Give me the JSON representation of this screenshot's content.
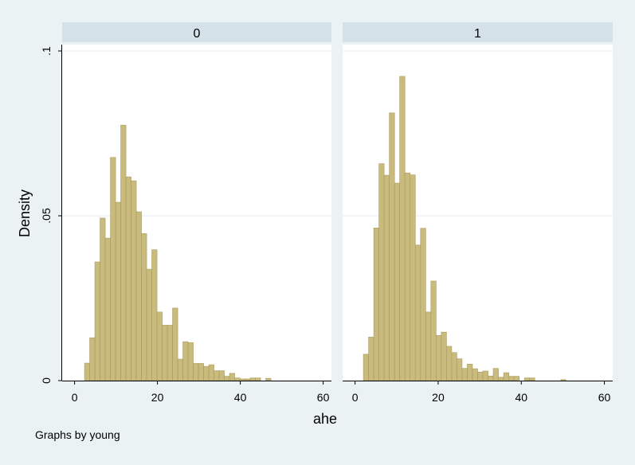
{
  "chart_data": {
    "type": "bar",
    "xlabel": "ahe",
    "ylabel": "Density",
    "xlim": [
      -3,
      62
    ],
    "ylim": [
      0,
      0.1
    ],
    "xticks": [
      {
        "value": 0,
        "label": "0"
      },
      {
        "value": 20,
        "label": "20"
      },
      {
        "value": 40,
        "label": "40"
      },
      {
        "value": 60,
        "label": "60"
      }
    ],
    "yticks": [
      {
        "value": 0,
        "label": "0"
      },
      {
        "value": 0.05,
        "label": ".05"
      },
      {
        "value": 0.1,
        "label": ".1"
      }
    ],
    "grid": true,
    "bar_color": "#c8bb7d",
    "bar_edge_color": "#a89a5c",
    "panel_header_color": "#d5e1e9",
    "background_color": "#eaf2f3",
    "panels": [
      {
        "label": "0",
        "bars": [
          {
            "x": 2.4,
            "w": 1.25,
            "d": 0.0053
          },
          {
            "x": 3.65,
            "w": 1.25,
            "d": 0.013
          },
          {
            "x": 4.9,
            "w": 1.25,
            "d": 0.036
          },
          {
            "x": 6.15,
            "w": 1.25,
            "d": 0.0493
          },
          {
            "x": 7.4,
            "w": 1.25,
            "d": 0.0432
          },
          {
            "x": 8.65,
            "w": 1.25,
            "d": 0.0677
          },
          {
            "x": 9.9,
            "w": 1.25,
            "d": 0.0541
          },
          {
            "x": 11.15,
            "w": 1.25,
            "d": 0.0775
          },
          {
            "x": 12.4,
            "w": 1.25,
            "d": 0.0618
          },
          {
            "x": 13.65,
            "w": 1.25,
            "d": 0.0606
          },
          {
            "x": 14.9,
            "w": 1.25,
            "d": 0.0512
          },
          {
            "x": 16.15,
            "w": 1.25,
            "d": 0.0446
          },
          {
            "x": 17.4,
            "w": 1.25,
            "d": 0.0338
          },
          {
            "x": 18.65,
            "w": 1.25,
            "d": 0.0397
          },
          {
            "x": 19.9,
            "w": 1.25,
            "d": 0.0208
          },
          {
            "x": 21.15,
            "w": 1.25,
            "d": 0.0168
          },
          {
            "x": 22.4,
            "w": 1.25,
            "d": 0.0168
          },
          {
            "x": 23.65,
            "w": 1.25,
            "d": 0.022
          },
          {
            "x": 24.9,
            "w": 1.25,
            "d": 0.0065
          },
          {
            "x": 26.15,
            "w": 1.25,
            "d": 0.0118
          },
          {
            "x": 27.4,
            "w": 1.25,
            "d": 0.0115
          },
          {
            "x": 28.65,
            "w": 1.25,
            "d": 0.0052
          },
          {
            "x": 29.9,
            "w": 1.25,
            "d": 0.0052
          },
          {
            "x": 31.15,
            "w": 1.25,
            "d": 0.0043
          },
          {
            "x": 32.4,
            "w": 1.25,
            "d": 0.0048
          },
          {
            "x": 33.65,
            "w": 1.25,
            "d": 0.003
          },
          {
            "x": 34.9,
            "w": 1.25,
            "d": 0.003
          },
          {
            "x": 36.15,
            "w": 1.25,
            "d": 0.0013
          },
          {
            "x": 37.4,
            "w": 1.25,
            "d": 0.0022
          },
          {
            "x": 38.65,
            "w": 1.25,
            "d": 0.0008
          },
          {
            "x": 39.9,
            "w": 1.25,
            "d": 0.0005
          },
          {
            "x": 41.15,
            "w": 1.25,
            "d": 0.0005
          },
          {
            "x": 42.4,
            "w": 1.25,
            "d": 0.0008
          },
          {
            "x": 43.65,
            "w": 1.25,
            "d": 0.0008
          },
          {
            "x": 46.15,
            "w": 1.25,
            "d": 0.0007
          }
        ]
      },
      {
        "label": "1",
        "bars": [
          {
            "x": 2.0,
            "w": 1.25,
            "d": 0.008
          },
          {
            "x": 3.25,
            "w": 1.25,
            "d": 0.0132
          },
          {
            "x": 4.5,
            "w": 1.25,
            "d": 0.0463
          },
          {
            "x": 5.75,
            "w": 1.25,
            "d": 0.0658
          },
          {
            "x": 7.0,
            "w": 1.25,
            "d": 0.0623
          },
          {
            "x": 8.25,
            "w": 1.25,
            "d": 0.0812
          },
          {
            "x": 9.5,
            "w": 1.25,
            "d": 0.0599
          },
          {
            "x": 10.75,
            "w": 1.25,
            "d": 0.0923
          },
          {
            "x": 12.0,
            "w": 1.25,
            "d": 0.063
          },
          {
            "x": 13.25,
            "w": 1.25,
            "d": 0.0624
          },
          {
            "x": 14.5,
            "w": 1.25,
            "d": 0.0411
          },
          {
            "x": 15.75,
            "w": 1.25,
            "d": 0.0462
          },
          {
            "x": 17.0,
            "w": 1.25,
            "d": 0.0208
          },
          {
            "x": 18.25,
            "w": 1.25,
            "d": 0.0302
          },
          {
            "x": 19.5,
            "w": 1.25,
            "d": 0.0137
          },
          {
            "x": 20.75,
            "w": 1.25,
            "d": 0.0147
          },
          {
            "x": 22.0,
            "w": 1.25,
            "d": 0.0104
          },
          {
            "x": 23.25,
            "w": 1.25,
            "d": 0.0085
          },
          {
            "x": 24.5,
            "w": 1.25,
            "d": 0.0066
          },
          {
            "x": 25.75,
            "w": 1.25,
            "d": 0.0037
          },
          {
            "x": 27.0,
            "w": 1.25,
            "d": 0.005
          },
          {
            "x": 28.25,
            "w": 1.25,
            "d": 0.0036
          },
          {
            "x": 29.5,
            "w": 1.25,
            "d": 0.0026
          },
          {
            "x": 30.75,
            "w": 1.25,
            "d": 0.0029
          },
          {
            "x": 32.0,
            "w": 1.25,
            "d": 0.0014
          },
          {
            "x": 33.25,
            "w": 1.25,
            "d": 0.0037
          },
          {
            "x": 34.5,
            "w": 1.25,
            "d": 0.001
          },
          {
            "x": 35.75,
            "w": 1.25,
            "d": 0.0024
          },
          {
            "x": 37.0,
            "w": 1.25,
            "d": 0.0013
          },
          {
            "x": 38.25,
            "w": 1.25,
            "d": 0.0013
          },
          {
            "x": 40.75,
            "w": 1.25,
            "d": 0.0008
          },
          {
            "x": 42.0,
            "w": 1.25,
            "d": 0.0008
          },
          {
            "x": 49.5,
            "w": 1.25,
            "d": 0.0003
          }
        ]
      }
    ]
  },
  "note": "Graphs by young"
}
